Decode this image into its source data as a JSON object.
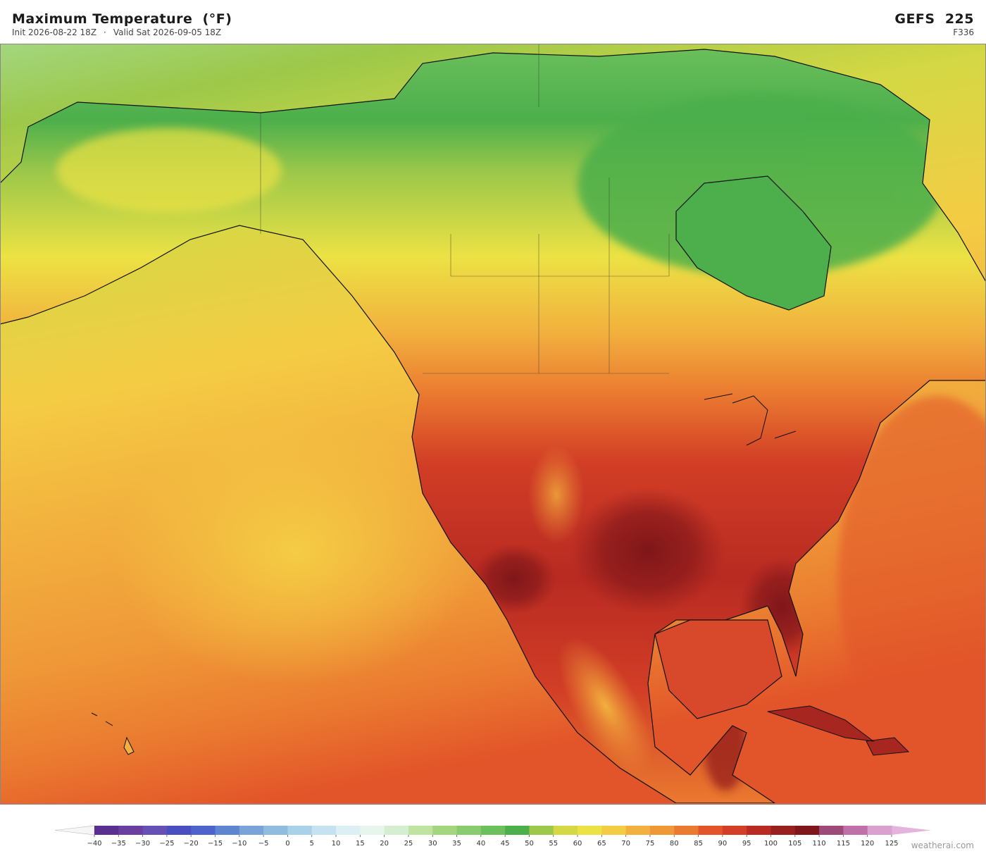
{
  "header": {
    "title": "Maximum Temperature  (°F)",
    "init": "Init 2026-08-22 18Z",
    "separator": "·",
    "valid": "Valid Sat 2026-09-05 18Z",
    "model": "GEFS  225",
    "forecast_hour": "F336"
  },
  "colorbar": {
    "ticks": [
      {
        "value": -40,
        "label": "−40"
      },
      {
        "value": -35,
        "label": "−35"
      },
      {
        "value": -30,
        "label": "−30"
      },
      {
        "value": -25,
        "label": "−25"
      },
      {
        "value": -20,
        "label": "−20"
      },
      {
        "value": -15,
        "label": "−15"
      },
      {
        "value": -10,
        "label": "−10"
      },
      {
        "value": -5,
        "label": "−5"
      },
      0,
      5,
      10,
      15,
      20,
      25,
      30,
      35,
      40,
      45,
      50,
      55,
      60,
      65,
      70,
      75,
      80,
      85,
      90,
      95,
      100,
      105,
      110,
      115,
      120,
      125
    ],
    "colors": [
      "#5b2f8f",
      "#6a3fa0",
      "#6650b4",
      "#4a4fc0",
      "#4c64cc",
      "#5e86d0",
      "#7aa4d8",
      "#90bce0",
      "#a9d2ea",
      "#c4e2f0",
      "#dceff4",
      "#e8f5ec",
      "#d6eed0",
      "#bfe3a0",
      "#a3d67f",
      "#88cc6e",
      "#6cc05b",
      "#4caf4c",
      "#9dc84a",
      "#d4d844",
      "#ece244",
      "#f4cc44",
      "#f2b03e",
      "#ef9838",
      "#ea7a30",
      "#e2552a",
      "#d23e26",
      "#b82a22",
      "#98201e",
      "#7e161a",
      "#9e4a78",
      "#c070a8",
      "#d9a0d0"
    ],
    "under_color": "#f6f6f6",
    "over_color": "#e4b4dc"
  },
  "footer": {
    "brand": "weatherai.com"
  }
}
